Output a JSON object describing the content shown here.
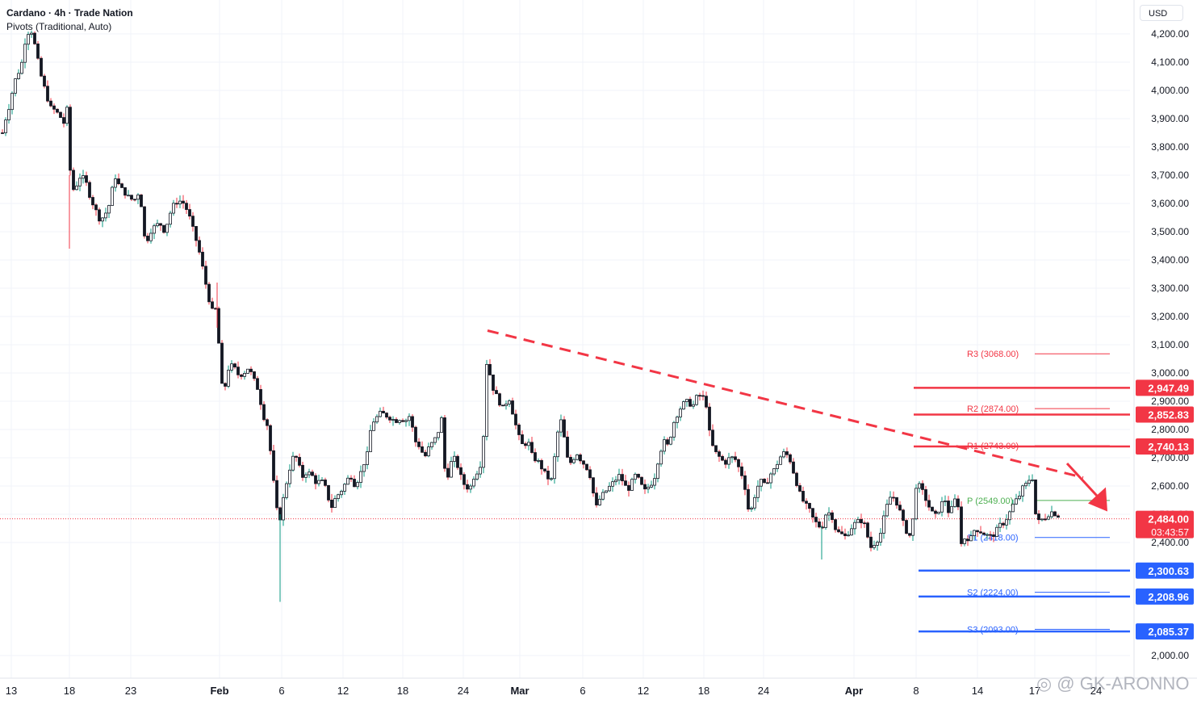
{
  "header": {
    "symbol_line": "Cardano · 4h · Trade Nation",
    "indicator_line": "Pivots (Traditional, Auto)",
    "currency": "USD"
  },
  "watermark": "◎ @ GK-ARONNO",
  "chart_data": {
    "type": "candlestick",
    "y_axis": {
      "min": 1980,
      "max": 4280,
      "ticks": [
        "4,200.00",
        "4,100.00",
        "4,000.00",
        "3,900.00",
        "3,800.00",
        "3,700.00",
        "3,600.00",
        "3,500.00",
        "3,400.00",
        "3,300.00",
        "3,200.00",
        "3,100.00",
        "3,000.00",
        "2,900.00",
        "2,800.00",
        "2,700.00",
        "2,600.00",
        "2,500.00",
        "2,400.00",
        "2,000.00"
      ],
      "tick_values": [
        4200,
        4100,
        4000,
        3900,
        3800,
        3700,
        3600,
        3500,
        3400,
        3300,
        3200,
        3100,
        3000,
        2900,
        2800,
        2700,
        2600,
        2500,
        2400,
        2000
      ]
    },
    "x_axis": {
      "labels": [
        "13",
        "18",
        "23",
        "Feb",
        "6",
        "12",
        "18",
        "24",
        "Mar",
        "6",
        "12",
        "18",
        "24",
        "Apr",
        "8",
        "14",
        "17",
        "24"
      ],
      "bold": [
        false,
        false,
        false,
        true,
        false,
        false,
        false,
        false,
        true,
        false,
        false,
        false,
        false,
        true,
        false,
        false,
        false,
        false
      ]
    },
    "price_path": [
      [
        0,
        3850
      ],
      [
        8,
        3900
      ],
      [
        14,
        3980
      ],
      [
        20,
        4050
      ],
      [
        26,
        4080
      ],
      [
        32,
        4190
      ],
      [
        38,
        4220
      ],
      [
        44,
        4150
      ],
      [
        50,
        4060
      ],
      [
        56,
        4000
      ],
      [
        62,
        3940
      ],
      [
        68,
        3930
      ],
      [
        74,
        3910
      ],
      [
        80,
        3880
      ],
      [
        84,
        3950
      ],
      [
        88,
        3640
      ],
      [
        94,
        3660
      ],
      [
        100,
        3700
      ],
      [
        106,
        3680
      ],
      [
        112,
        3620
      ],
      [
        118,
        3580
      ],
      [
        124,
        3540
      ],
      [
        130,
        3560
      ],
      [
        136,
        3600
      ],
      [
        142,
        3700
      ],
      [
        148,
        3660
      ],
      [
        154,
        3640
      ],
      [
        160,
        3620
      ],
      [
        166,
        3610
      ],
      [
        172,
        3640
      ],
      [
        176,
        3580
      ],
      [
        180,
        3450
      ],
      [
        186,
        3500
      ],
      [
        192,
        3520
      ],
      [
        198,
        3530
      ],
      [
        204,
        3500
      ],
      [
        210,
        3560
      ],
      [
        216,
        3600
      ],
      [
        222,
        3610
      ],
      [
        228,
        3600
      ],
      [
        234,
        3560
      ],
      [
        240,
        3500
      ],
      [
        246,
        3440
      ],
      [
        252,
        3360
      ],
      [
        258,
        3270
      ],
      [
        264,
        3210
      ],
      [
        270,
        3240
      ],
      [
        272,
        2970
      ],
      [
        278,
        2940
      ],
      [
        284,
        3030
      ],
      [
        290,
        3020
      ],
      [
        296,
        2990
      ],
      [
        302,
        3000
      ],
      [
        308,
        3020
      ],
      [
        314,
        2980
      ],
      [
        320,
        2940
      ],
      [
        326,
        2850
      ],
      [
        332,
        2810
      ],
      [
        338,
        2640
      ],
      [
        342,
        2530
      ],
      [
        346,
        2470
      ],
      [
        350,
        2540
      ],
      [
        354,
        2600
      ],
      [
        358,
        2650
      ],
      [
        362,
        2700
      ],
      [
        368,
        2700
      ],
      [
        374,
        2630
      ],
      [
        380,
        2650
      ],
      [
        386,
        2640
      ],
      [
        392,
        2610
      ],
      [
        398,
        2620
      ],
      [
        404,
        2590
      ],
      [
        410,
        2520
      ],
      [
        416,
        2560
      ],
      [
        422,
        2580
      ],
      [
        428,
        2610
      ],
      [
        434,
        2640
      ],
      [
        440,
        2600
      ],
      [
        446,
        2640
      ],
      [
        452,
        2690
      ],
      [
        456,
        2720
      ],
      [
        460,
        2820
      ],
      [
        466,
        2840
      ],
      [
        472,
        2860
      ],
      [
        478,
        2850
      ],
      [
        484,
        2840
      ],
      [
        490,
        2830
      ],
      [
        496,
        2840
      ],
      [
        502,
        2830
      ],
      [
        508,
        2850
      ],
      [
        514,
        2760
      ],
      [
        520,
        2740
      ],
      [
        526,
        2700
      ],
      [
        532,
        2740
      ],
      [
        538,
        2760
      ],
      [
        544,
        2800
      ],
      [
        548,
        2850
      ],
      [
        552,
        2600
      ],
      [
        558,
        2680
      ],
      [
        564,
        2700
      ],
      [
        570,
        2640
      ],
      [
        576,
        2600
      ],
      [
        582,
        2590
      ],
      [
        588,
        2640
      ],
      [
        594,
        2660
      ],
      [
        598,
        2720
      ],
      [
        600,
        2840
      ],
      [
        604,
        3100
      ],
      [
        608,
        2960
      ],
      [
        612,
        2940
      ],
      [
        618,
        2900
      ],
      [
        624,
        2870
      ],
      [
        630,
        2920
      ],
      [
        636,
        2850
      ],
      [
        642,
        2780
      ],
      [
        648,
        2740
      ],
      [
        654,
        2760
      ],
      [
        660,
        2700
      ],
      [
        666,
        2690
      ],
      [
        672,
        2660
      ],
      [
        678,
        2630
      ],
      [
        684,
        2620
      ],
      [
        690,
        2780
      ],
      [
        696,
        2840
      ],
      [
        702,
        2700
      ],
      [
        708,
        2680
      ],
      [
        714,
        2720
      ],
      [
        720,
        2690
      ],
      [
        726,
        2670
      ],
      [
        732,
        2630
      ],
      [
        738,
        2520
      ],
      [
        744,
        2560
      ],
      [
        750,
        2580
      ],
      [
        756,
        2600
      ],
      [
        762,
        2620
      ],
      [
        768,
        2640
      ],
      [
        774,
        2600
      ],
      [
        780,
        2590
      ],
      [
        786,
        2640
      ],
      [
        792,
        2620
      ],
      [
        798,
        2580
      ],
      [
        804,
        2600
      ],
      [
        810,
        2620
      ],
      [
        816,
        2700
      ],
      [
        822,
        2760
      ],
      [
        828,
        2740
      ],
      [
        834,
        2820
      ],
      [
        840,
        2860
      ],
      [
        846,
        2890
      ],
      [
        852,
        2900
      ],
      [
        858,
        2880
      ],
      [
        864,
        2920
      ],
      [
        870,
        2920
      ],
      [
        876,
        2880
      ],
      [
        880,
        2760
      ],
      [
        886,
        2720
      ],
      [
        892,
        2700
      ],
      [
        898,
        2680
      ],
      [
        904,
        2700
      ],
      [
        910,
        2700
      ],
      [
        916,
        2660
      ],
      [
        922,
        2620
      ],
      [
        926,
        2520
      ],
      [
        932,
        2520
      ],
      [
        936,
        2580
      ],
      [
        942,
        2620
      ],
      [
        948,
        2600
      ],
      [
        954,
        2640
      ],
      [
        960,
        2660
      ],
      [
        966,
        2700
      ],
      [
        972,
        2720
      ],
      [
        978,
        2700
      ],
      [
        984,
        2640
      ],
      [
        990,
        2580
      ],
      [
        996,
        2540
      ],
      [
        1002,
        2520
      ],
      [
        1008,
        2480
      ],
      [
        1014,
        2460
      ],
      [
        1018,
        2450
      ],
      [
        1024,
        2510
      ],
      [
        1030,
        2500
      ],
      [
        1036,
        2440
      ],
      [
        1042,
        2430
      ],
      [
        1048,
        2420
      ],
      [
        1054,
        2450
      ],
      [
        1060,
        2470
      ],
      [
        1066,
        2480
      ],
      [
        1072,
        2460
      ],
      [
        1078,
        2380
      ],
      [
        1084,
        2400
      ],
      [
        1090,
        2420
      ],
      [
        1096,
        2500
      ],
      [
        1102,
        2560
      ],
      [
        1108,
        2560
      ],
      [
        1114,
        2520
      ],
      [
        1120,
        2460
      ],
      [
        1126,
        2420
      ],
      [
        1130,
        2440
      ],
      [
        1134,
        2600
      ],
      [
        1140,
        2600
      ],
      [
        1146,
        2560
      ],
      [
        1152,
        2520
      ],
      [
        1158,
        2490
      ],
      [
        1164,
        2520
      ],
      [
        1170,
        2560
      ],
      [
        1176,
        2500
      ],
      [
        1182,
        2540
      ],
      [
        1186,
        2580
      ],
      [
        1190,
        2390
      ],
      [
        1196,
        2420
      ],
      [
        1202,
        2410
      ],
      [
        1208,
        2450
      ],
      [
        1214,
        2440
      ],
      [
        1220,
        2430
      ],
      [
        1226,
        2420
      ],
      [
        1232,
        2430
      ],
      [
        1238,
        2460
      ],
      [
        1244,
        2470
      ],
      [
        1250,
        2500
      ],
      [
        1256,
        2540
      ],
      [
        1262,
        2560
      ],
      [
        1268,
        2600
      ],
      [
        1274,
        2610
      ],
      [
        1278,
        2660
      ],
      [
        1284,
        2470
      ],
      [
        1290,
        2480
      ],
      [
        1296,
        2490
      ],
      [
        1302,
        2510
      ],
      [
        1308,
        2500
      ],
      [
        1314,
        2490
      ]
    ],
    "last_price": {
      "value": 2484.0,
      "label": "2,484.00",
      "countdown": "03:43:57",
      "color": "#f23645"
    },
    "pivots": [
      {
        "name": "R3",
        "label": "R3 (3068.00)",
        "value": 3068,
        "color": "#f23645"
      },
      {
        "name": "R2",
        "label": "R2 (2874.00)",
        "value": 2874,
        "color": "#f23645"
      },
      {
        "name": "R1",
        "label": "R1 (2743.00)",
        "value": 2743,
        "color": "#f23645"
      },
      {
        "name": "P",
        "label": "P (2549.00)",
        "value": 2549,
        "color": "#4caf50"
      },
      {
        "name": "S1",
        "label": "S1 (2418.00)",
        "value": 2418,
        "color": "#2962ff"
      },
      {
        "name": "S2",
        "label": "S2 (2224.00)",
        "value": 2224,
        "color": "#2962ff"
      },
      {
        "name": "S3",
        "label": "S3 (2093.00)",
        "value": 2093,
        "color": "#2962ff"
      }
    ],
    "resistance_levels": [
      {
        "value": 2947.49,
        "label": "2,947.49",
        "color": "#f23645"
      },
      {
        "value": 2852.83,
        "label": "2,852.83",
        "color": "#f23645"
      },
      {
        "value": 2740.13,
        "label": "2,740.13",
        "color": "#f23645"
      }
    ],
    "support_levels": [
      {
        "value": 2300.63,
        "label": "2,300.63",
        "color": "#2962ff"
      },
      {
        "value": 2208.96,
        "label": "2,208.96",
        "color": "#2962ff"
      },
      {
        "value": 2085.37,
        "label": "2,085.37",
        "color": "#2962ff"
      }
    ],
    "trendline": {
      "from": [
        604,
        3150
      ],
      "to": [
        1342,
        2630
      ],
      "style": "dashed",
      "color": "#f23645"
    },
    "arrow": {
      "from": [
        1322,
        2680
      ],
      "to": [
        1372,
        2510
      ],
      "color": "#f23645"
    },
    "colors": {
      "up": "#089981",
      "down": "#f23645",
      "candle_body": "#131722",
      "grid": "#f0f3fa",
      "axis_text": "#131722"
    }
  }
}
